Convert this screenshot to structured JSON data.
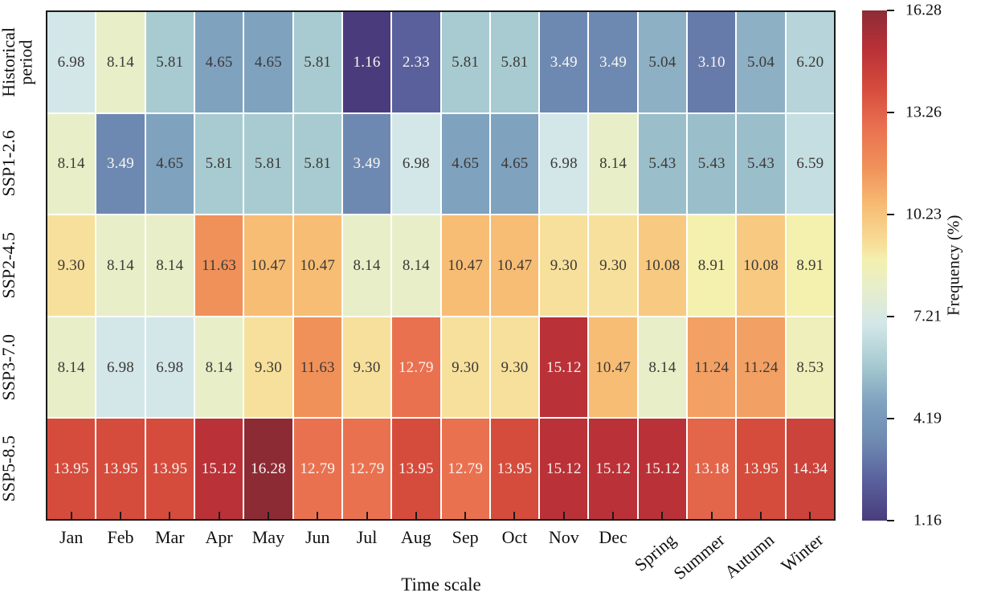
{
  "chart_data": {
    "type": "heatmap",
    "title": "",
    "xlabel": "Time scale",
    "colorbar_label": "Frequency (%)",
    "x_categories": [
      "Jan",
      "Feb",
      "Mar",
      "Apr",
      "May",
      "Jun",
      "Jul",
      "Aug",
      "Sep",
      "Oct",
      "Nov",
      "Dec",
      "Spring",
      "Summer",
      "Autumn",
      "Winter"
    ],
    "rotated_x_label_start_index": 12,
    "y_categories": [
      "Historical\nperiod",
      "SSP1-2.6",
      "SSP2-4.5",
      "SSP3-7.0",
      "SSP5-8.5"
    ],
    "values": [
      [
        6.98,
        8.14,
        5.81,
        4.65,
        4.65,
        5.81,
        1.16,
        2.33,
        5.81,
        5.81,
        3.49,
        3.49,
        5.04,
        3.1,
        5.04,
        6.2
      ],
      [
        8.14,
        3.49,
        4.65,
        5.81,
        5.81,
        5.81,
        3.49,
        6.98,
        4.65,
        4.65,
        6.98,
        8.14,
        5.43,
        5.43,
        5.43,
        6.59
      ],
      [
        9.3,
        8.14,
        8.14,
        11.63,
        10.47,
        10.47,
        8.14,
        8.14,
        10.47,
        10.47,
        9.3,
        9.3,
        10.08,
        8.91,
        10.08,
        8.91
      ],
      [
        8.14,
        6.98,
        6.98,
        8.14,
        9.3,
        11.63,
        9.3,
        12.79,
        9.3,
        9.3,
        15.12,
        10.47,
        8.14,
        11.24,
        11.24,
        8.53
      ],
      [
        13.95,
        13.95,
        13.95,
        15.12,
        16.28,
        12.79,
        12.79,
        13.95,
        12.79,
        13.95,
        15.12,
        15.12,
        15.12,
        13.18,
        13.95,
        14.34
      ]
    ],
    "value_decimals": 2,
    "vmin": 1.16,
    "vmax": 16.28,
    "colorbar_ticks": [
      "16.28",
      "13.26",
      "10.23",
      "7.21",
      "4.19",
      "1.16"
    ],
    "colormap_stops": [
      {
        "v": 1.16,
        "c": "#4a3c7c"
      },
      {
        "v": 2.33,
        "c": "#59609c"
      },
      {
        "v": 3.49,
        "c": "#6e89b1"
      },
      {
        "v": 4.65,
        "c": "#7fa2bf"
      },
      {
        "v": 5.81,
        "c": "#a8cbd1"
      },
      {
        "v": 6.98,
        "c": "#d3e7e9"
      },
      {
        "v": 8.14,
        "c": "#e8eec8"
      },
      {
        "v": 8.91,
        "c": "#f4f0ae"
      },
      {
        "v": 9.3,
        "c": "#f7e09b"
      },
      {
        "v": 10.47,
        "c": "#f7bd74"
      },
      {
        "v": 11.63,
        "c": "#f0915a"
      },
      {
        "v": 12.79,
        "c": "#ea7150"
      },
      {
        "v": 13.95,
        "c": "#d54c3d"
      },
      {
        "v": 15.12,
        "c": "#ba3137"
      },
      {
        "v": 16.28,
        "c": "#8d2b35"
      }
    ],
    "cell_text_dark": "#3d3936",
    "cell_text_light": "#f8f5f1",
    "light_text_low_threshold": 3.5,
    "light_text_high_threshold": 12.7
  }
}
